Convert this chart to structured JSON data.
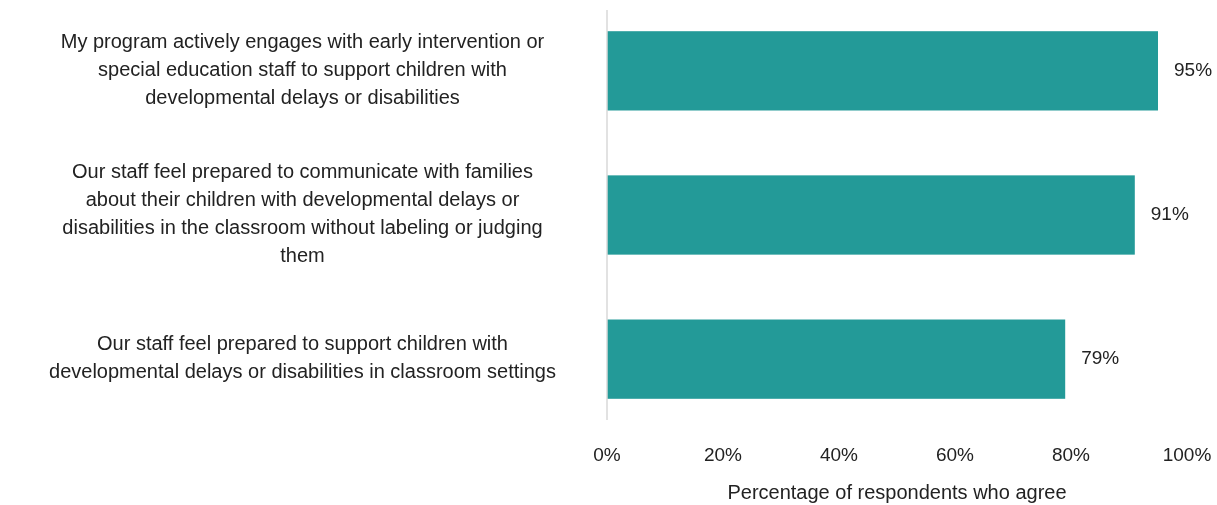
{
  "chart_data": {
    "type": "bar",
    "orientation": "horizontal",
    "categories": [
      "My program actively engages with early intervention or special education staff to support children with developmental delays or disabilities",
      "Our staff feel prepared to communicate with families about their children with developmental delays or disabilities in the classroom without labeling or judging them",
      "Our staff feel prepared to support children with developmental delays or disabilities in classroom settings"
    ],
    "values": [
      95,
      91,
      79
    ],
    "value_labels": [
      "95%",
      "91%",
      "79%"
    ],
    "color": "#239a98",
    "xlim": [
      0,
      100
    ],
    "xticks": [
      {
        "value": 0,
        "label": "0%"
      },
      {
        "value": 20,
        "label": "20%"
      },
      {
        "value": 40,
        "label": "40%"
      },
      {
        "value": 60,
        "label": "60%"
      },
      {
        "value": 80,
        "label": "80%"
      },
      {
        "value": 100,
        "label": "100%"
      }
    ],
    "xlabel": "Percentage of respondents who agree",
    "grid": false
  }
}
